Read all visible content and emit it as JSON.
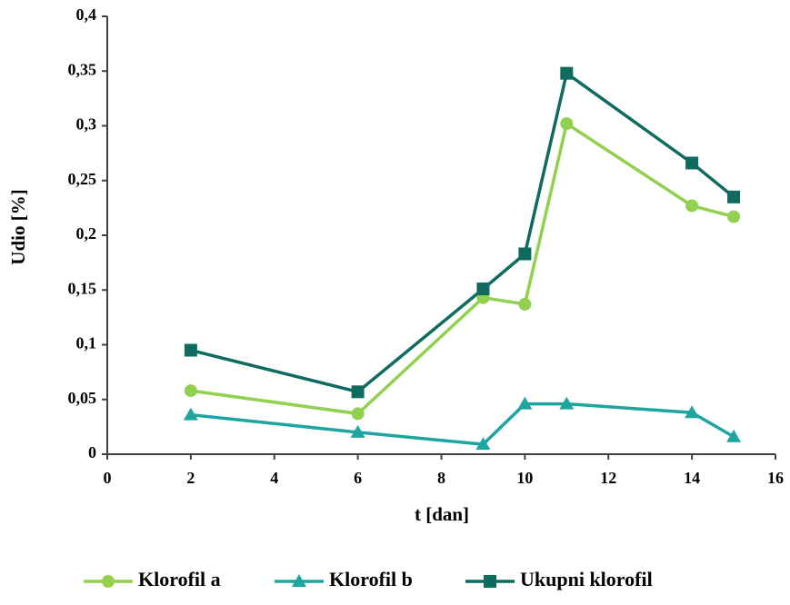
{
  "chart_data": {
    "type": "line",
    "x_label": "t [dan]",
    "y_label": "Udio [%]",
    "x": [
      2,
      6,
      9,
      10,
      11,
      14,
      15
    ],
    "series": [
      {
        "name": "Klorofil a",
        "color": "#92d050",
        "marker": "circle",
        "values": [
          0.058,
          0.037,
          0.143,
          0.137,
          0.302,
          0.227,
          0.217
        ]
      },
      {
        "name": "Klorofil b",
        "color": "#1ea5a0",
        "marker": "triangle",
        "values": [
          0.036,
          0.02,
          0.009,
          0.046,
          0.046,
          0.038,
          0.016
        ]
      },
      {
        "name": "Ukupni klorofil",
        "color": "#0f6b5f",
        "marker": "square",
        "values": [
          0.095,
          0.057,
          0.151,
          0.183,
          0.348,
          0.266,
          0.235
        ]
      }
    ],
    "xlim": [
      0,
      16
    ],
    "xticks": [
      0,
      2,
      4,
      6,
      8,
      10,
      12,
      14,
      16
    ],
    "ylim": [
      0,
      0.4
    ],
    "yticks": [
      0,
      {
        "value": 0.05,
        "label": "0,05"
      },
      {
        "value": 0.1,
        "label": "0,1"
      },
      {
        "value": 0.15,
        "label": "0,15"
      },
      {
        "value": 0.2,
        "label": "0,2"
      },
      {
        "value": 0.25,
        "label": "0,25"
      },
      {
        "value": 0.3,
        "label": "0,3"
      },
      {
        "value": 0.35,
        "label": "0,35"
      },
      {
        "value": 0.4,
        "label": "0,4"
      }
    ],
    "grid": false,
    "legend": "bottom"
  }
}
